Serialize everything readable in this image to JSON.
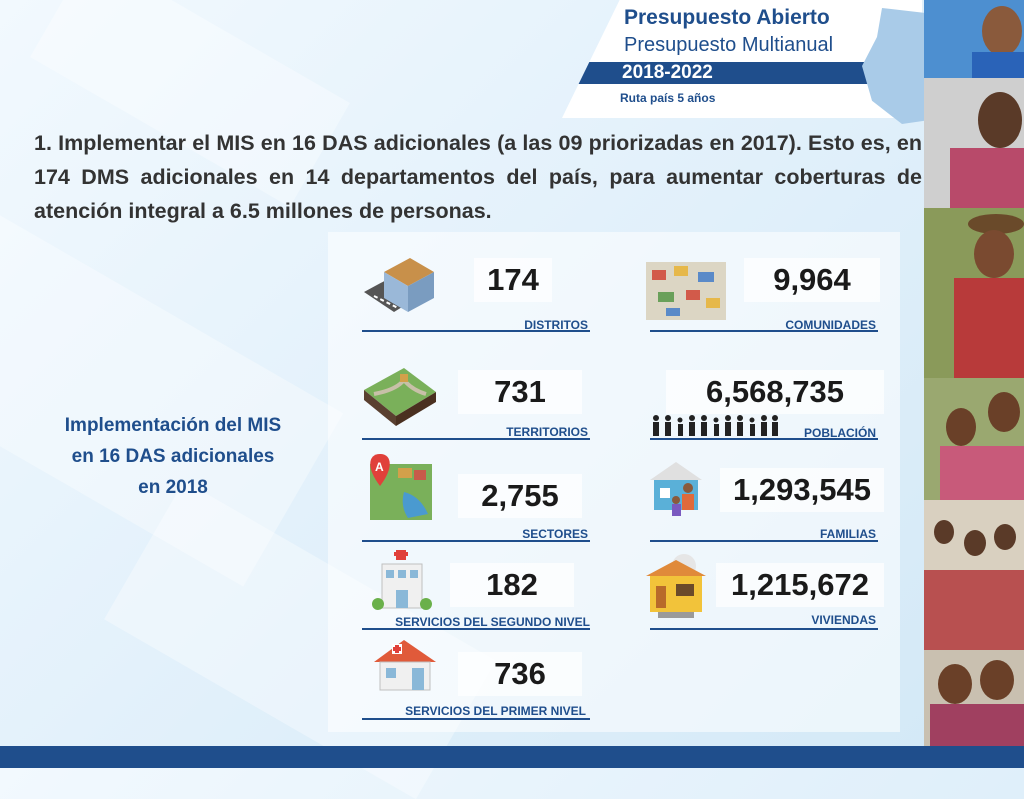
{
  "header": {
    "title": "Presupuesto Abierto",
    "subtitle": "Presupuesto Multianual",
    "years": "2018-2022",
    "tagline": "Ruta país 5 años"
  },
  "heading": "1. Implementar el MIS en 16 DAS adicionales (a las 09 priorizadas en 2017). Esto es, en 174 DMS adicionales en 14 departamentos del país, para aumentar coberturas de atención integral a 6.5 millones de personas.",
  "side_title": {
    "line1": "Implementación del MIS",
    "line2": "en 16 DAS adicionales",
    "line3": "en 2018"
  },
  "stats": {
    "distritos": {
      "value": "174",
      "label": "DISTRITOS"
    },
    "comunidades": {
      "value": "9,964",
      "label": "COMUNIDADES"
    },
    "territorios": {
      "value": "731",
      "label": "TERRITORIOS"
    },
    "poblacion": {
      "value": "6,568,735",
      "label": "POBLACIÓN"
    },
    "sectores": {
      "value": "2,755",
      "label": "SECTORES"
    },
    "familias": {
      "value": "1,293,545",
      "label": "FAMILIAS"
    },
    "segundo_nivel": {
      "value": "182",
      "label": "SERVICIOS DEL SEGUNDO NIVEL"
    },
    "viviendas": {
      "value": "1,215,672",
      "label": "VIVIENDAS"
    },
    "primer_nivel": {
      "value": "736",
      "label": "SERVICIOS DEL PRIMER NIVEL"
    }
  },
  "colors": {
    "brand": "#1f4e8c",
    "text": "#333333"
  },
  "icons": [
    "building-icon",
    "village-icon",
    "terrain-icon",
    "people-icon",
    "map-pin-icon",
    "family-house-icon",
    "hospital-icon",
    "yellow-house-icon",
    "clinic-icon"
  ]
}
